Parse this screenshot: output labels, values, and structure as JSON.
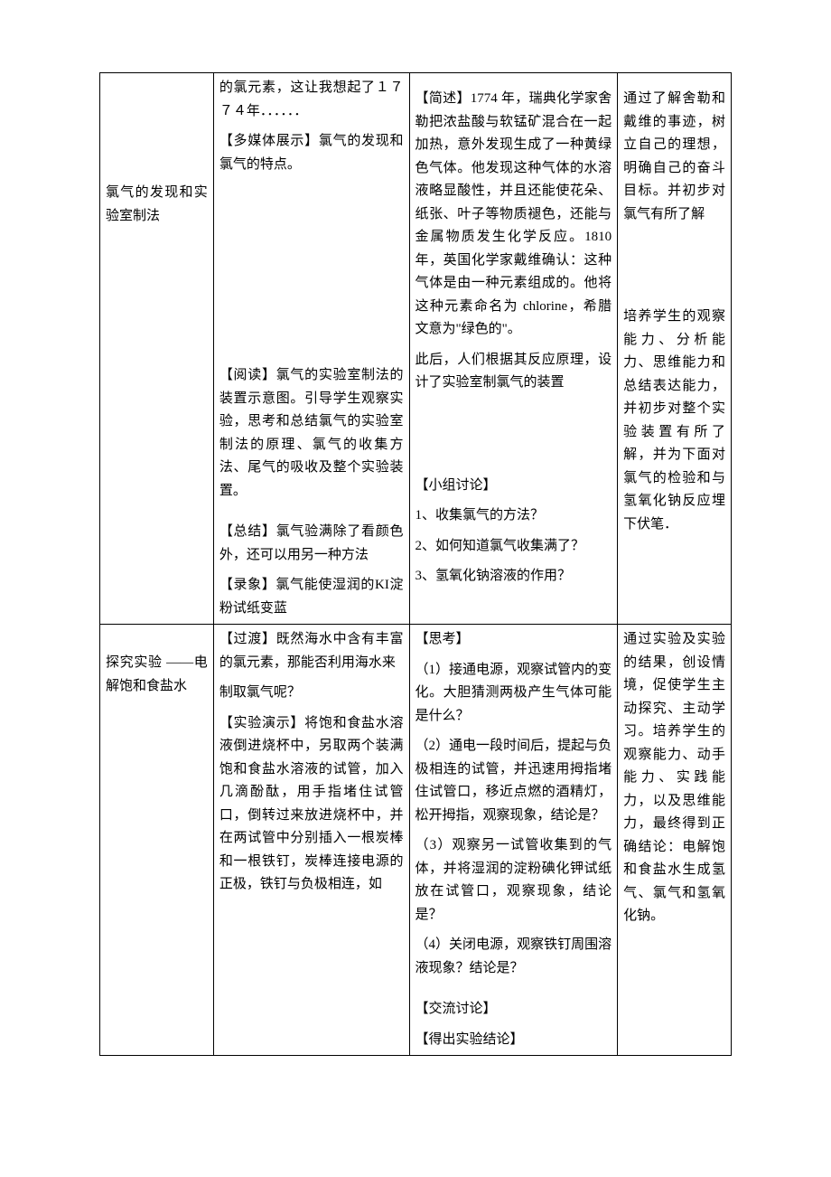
{
  "row1": {
    "col1": "氯气的发现和实验室制法",
    "col2": {
      "p1": "的氯元素，这让我想起了１７７４年．．．．．．",
      "p2": "【多媒体展示】氯气的发现和氯气的特点。",
      "p3": "【阅读】氯气的实验室制法的装置示意图。引导学生观察实验，思考和总结氯气的实验室制法的原理、氯气的收集方法、尾气的吸收及整个实验装置。",
      "p4": "【总结】氯气验满除了看颜色外，还可以用另一种方法",
      "p5": "【录象】氯气能使湿润的KI淀粉试纸变蓝"
    },
    "col3": {
      "p1": "【简述】1774 年，瑞典化学家舍勒把浓盐酸与软锰矿混合在一起加热，意外发现生成了一种黄绿色气体。他发现这种气体的水溶液略显酸性，并且还能使花朵、纸张、叶子等物质褪色，还能与金属物质发生化学反应。1810 年，英国化学家戴维确认：这种气体是由一种元素组成的。他将这种元素命名为 chlorine，希腊文意为\"绿色的\"。",
      "p2": "此后，人们根据其反应原理，设计了实验室制氯气的装置",
      "p3": "【小组讨论】",
      "p4": "1、收集氯气的方法？",
      "p5": "2、如何知道氯气收集满了？",
      "p6": "3、氢氧化钠溶液的作用？"
    },
    "col4": {
      "p1": "通过了解舍勒和戴维的事迹，树立自己的理想，明确自己的奋斗目标。并初步对氯气有所了解",
      "p2": "培养学生的观察能力、分析能力、思维能力和总结表达能力，并初步对整个实验装置有所了解，并为下面对氯气的检验和与氢氧化钠反应埋下伏笔．"
    }
  },
  "row2": {
    "col1": "探究实验 ——电解饱和食盐水",
    "col2": {
      "p1": "【过渡】既然海水中含有丰富的氯元素，那能否利用海水来",
      "p2": "制取氯气呢？",
      "p3": "【实验演示】将饱和食盐水溶液倒进烧杯中，另取两个装满饱和食盐水溶液的试管，加入几滴酚酞，用手指堵住试管口，倒转过来放进烧杯中，并在两试管中分别插入一根炭棒和一根铁钉，炭棒连接电源的正极，铁钉与负极相连，如"
    },
    "col3": {
      "p1": "【思考】",
      "p2": "（1）接通电源，观察试管内的变化。大胆猜测两极产生气体可能是什么？",
      "p3": "（2）通电一段时间后，提起与负极相连的试管，并迅速用拇指堵住试管口，移近点燃的酒精灯，松开拇指，观察现象，结论是？",
      "p4": "（3）观察另一试管收集到的气体，并将湿润的淀粉碘化钾试纸放在试管口，观察现象，结论是？",
      "p5": "（4）关闭电源，观察铁钉周围溶液现象？结论是？",
      "p6": "【交流讨论】",
      "p7": "【得出实验结论】"
    },
    "col4": {
      "p1": "通过实验及实验的结果，创设情境，促使学生主动探究、主动学习。培养学生的观察能力、动手能力、实践能力，以及思维能力，最终得到正确结论：电解饱和食盐水生成氢气、氯气和氢氧化钠。"
    }
  }
}
